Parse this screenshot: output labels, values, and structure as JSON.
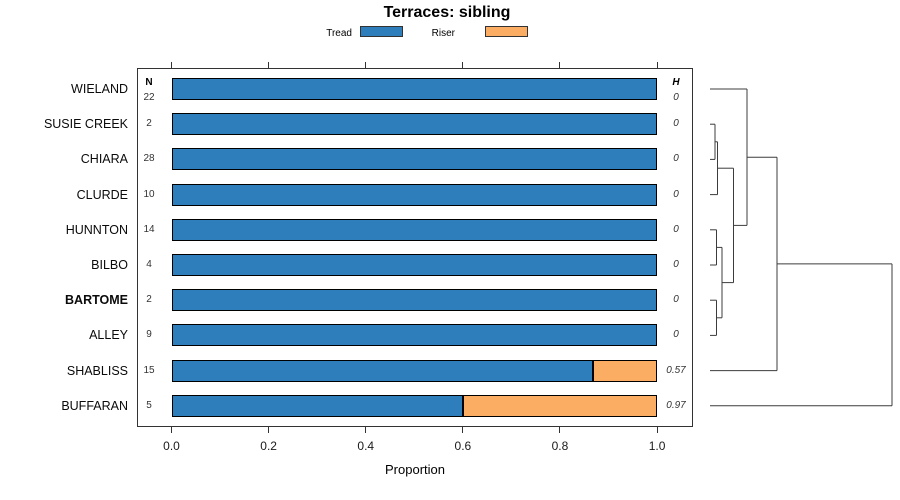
{
  "title": "Terraces: sibling",
  "legend": [
    {
      "label": "Tread",
      "color": "#2E7EBB"
    },
    {
      "label": "Riser",
      "color": "#FBAD63"
    }
  ],
  "chart_data": {
    "type": "bar",
    "orientation": "horizontal",
    "stacked": true,
    "title": "Terraces: sibling",
    "xlabel": "Proportion",
    "xlim": [
      0,
      1
    ],
    "x_ticks": [
      0,
      0.2,
      0.4,
      0.6,
      0.8,
      1.0
    ],
    "x_tick_labels": [
      "0.0",
      "0.2",
      "0.4",
      "0.6",
      "0.8",
      "1.0"
    ],
    "grid": false,
    "legend_position": "top",
    "categories": [
      "WIELAND",
      "SUSIE CREEK",
      "CHIARA",
      "CLURDE",
      "HUNNTON",
      "BILBO",
      "BARTOME",
      "ALLEY",
      "SHABLISS",
      "BUFFARAN"
    ],
    "bold_categories": [
      "BARTOME"
    ],
    "n_header": "N",
    "h_header": "H",
    "n_values": [
      "22",
      "2",
      "28",
      "10",
      "14",
      "4",
      "2",
      "9",
      "15",
      "5"
    ],
    "h_values": [
      "0",
      "0",
      "0",
      "0",
      "0",
      "0",
      "0",
      "0",
      "0.57",
      "0.97"
    ],
    "series": [
      {
        "name": "Tread",
        "color": "#2E7EBB",
        "values": [
          1,
          1,
          1,
          1,
          1,
          1,
          1,
          1,
          0.867,
          0.6
        ]
      },
      {
        "name": "Riser",
        "color": "#FBAD63",
        "values": [
          0,
          0,
          0,
          0,
          0,
          0,
          0,
          0,
          0.133,
          0.4
        ]
      }
    ],
    "dendrogram": {
      "line_color": "#3c3c3c",
      "leaf_x": 710,
      "merges": [
        {
          "a": "L1",
          "b": "L2",
          "dx": 5
        },
        {
          "a": "M0",
          "b": "L3",
          "dx": 7.5
        },
        {
          "a": "L4",
          "b": "L5",
          "dx": 6.5
        },
        {
          "a": "L6",
          "b": "L7",
          "dx": 6.5
        },
        {
          "a": "M2",
          "b": "M3",
          "dx": 12
        },
        {
          "a": "M1",
          "b": "M4",
          "dx": 23.5
        },
        {
          "a": "L0",
          "b": "M5",
          "dx": 37
        },
        {
          "a": "M6",
          "b": "L8",
          "dx": 67
        },
        {
          "a": "M7",
          "b": "L9",
          "dx": 182
        }
      ]
    }
  }
}
